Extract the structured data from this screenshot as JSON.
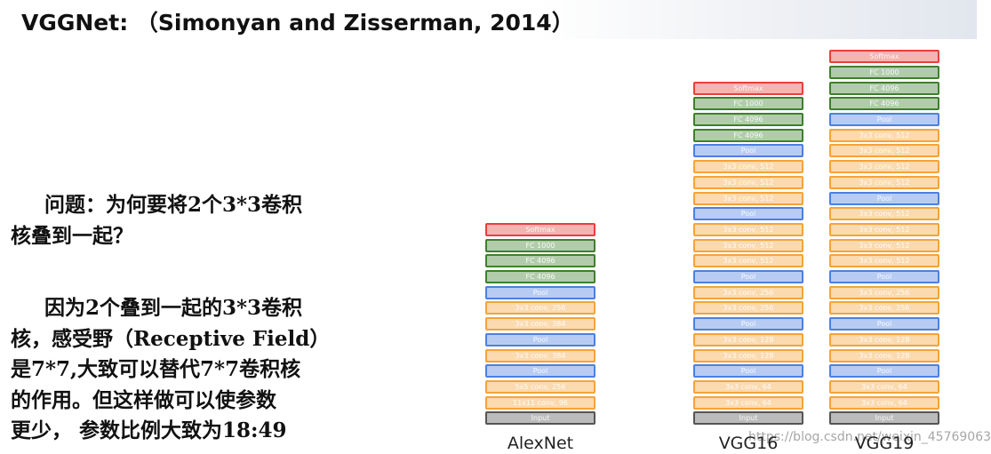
{
  "header": {
    "title": "VGGNet: （Simonyan and Zisserman, 2014）"
  },
  "text": {
    "paragraphs": [
      {
        "lines": [
          "问题：为何要将2个3*3卷积",
          "核叠到一起？"
        ]
      },
      {
        "lines": [
          "因为2个叠到一起的3*3卷积",
          "核，感受野（Receptive Field）",
          "是7*7,大致可以替代7*7卷积核",
          "的作用。但这样做可以使参数",
          "更少， 参数比例大致为18:49"
        ]
      }
    ]
  },
  "networks": [
    {
      "name": "AlexNet",
      "layers": [
        {
          "label": "Softmax",
          "color": "#e8403a"
        },
        {
          "label": "FC 1000",
          "color": "#3f7f2e"
        },
        {
          "label": "FC 4096",
          "color": "#3f7f2e"
        },
        {
          "label": "FC 4096",
          "color": "#3f7f2e"
        },
        {
          "label": "Pool",
          "color": "#4d7fe0"
        },
        {
          "label": "3x3 conv, 256",
          "color": "#f4a33a"
        },
        {
          "label": "3x3 conv, 384",
          "color": "#f4a33a"
        },
        {
          "label": "Pool",
          "color": "#4d7fe0"
        },
        {
          "label": "3x3 conv, 384",
          "color": "#f4a33a"
        },
        {
          "label": "Pool",
          "color": "#4d7fe0"
        },
        {
          "label": "5x5 conv, 256",
          "color": "#f4a33a"
        },
        {
          "label": "11x11 conv, 96",
          "color": "#f4a33a"
        },
        {
          "label": "Input",
          "color": "#555555"
        }
      ]
    },
    {
      "name": "VGG16",
      "layers": [
        {
          "label": "Softmax",
          "color": "#e8403a"
        },
        {
          "label": "FC 1000",
          "color": "#3f7f2e"
        },
        {
          "label": "FC 4096",
          "color": "#3f7f2e"
        },
        {
          "label": "FC 4096",
          "color": "#3f7f2e"
        },
        {
          "label": "Pool",
          "color": "#4d7fe0"
        },
        {
          "label": "3x3 conv, 512",
          "color": "#f4a33a"
        },
        {
          "label": "3x3 conv, 512",
          "color": "#f4a33a"
        },
        {
          "label": "3x3 conv, 512",
          "color": "#f4a33a"
        },
        {
          "label": "Pool",
          "color": "#4d7fe0"
        },
        {
          "label": "3x3 conv, 512",
          "color": "#f4a33a"
        },
        {
          "label": "3x3 conv, 512",
          "color": "#f4a33a"
        },
        {
          "label": "3x3 conv, 512",
          "color": "#f4a33a"
        },
        {
          "label": "Pool",
          "color": "#4d7fe0"
        },
        {
          "label": "3x3 conv, 256",
          "color": "#f4a33a"
        },
        {
          "label": "3x3 conv, 256",
          "color": "#f4a33a"
        },
        {
          "label": "Pool",
          "color": "#4d7fe0"
        },
        {
          "label": "3x3 conv, 128",
          "color": "#f4a33a"
        },
        {
          "label": "3x3 conv, 128",
          "color": "#f4a33a"
        },
        {
          "label": "Pool",
          "color": "#4d7fe0"
        },
        {
          "label": "3x3 conv, 64",
          "color": "#f4a33a"
        },
        {
          "label": "3x3 conv, 64",
          "color": "#f4a33a"
        },
        {
          "label": "Input",
          "color": "#555555"
        }
      ]
    },
    {
      "name": "VGG19",
      "layers": [
        {
          "label": "Softmax",
          "color": "#e8403a"
        },
        {
          "label": "FC 1000",
          "color": "#3f7f2e"
        },
        {
          "label": "FC 4096",
          "color": "#3f7f2e"
        },
        {
          "label": "FC 4096",
          "color": "#3f7f2e"
        },
        {
          "label": "Pool",
          "color": "#4d7fe0"
        },
        {
          "label": "3x3 conv, 512",
          "color": "#f4a33a"
        },
        {
          "label": "3x3 conv, 512",
          "color": "#f4a33a"
        },
        {
          "label": "3x3 conv, 512",
          "color": "#f4a33a"
        },
        {
          "label": "3x3 conv, 512",
          "color": "#f4a33a"
        },
        {
          "label": "Pool",
          "color": "#4d7fe0"
        },
        {
          "label": "3x3 conv, 512",
          "color": "#f4a33a"
        },
        {
          "label": "3x3 conv, 512",
          "color": "#f4a33a"
        },
        {
          "label": "3x3 conv, 512",
          "color": "#f4a33a"
        },
        {
          "label": "3x3 conv, 512",
          "color": "#f4a33a"
        },
        {
          "label": "Pool",
          "color": "#4d7fe0"
        },
        {
          "label": "3x3 conv, 256",
          "color": "#f4a33a"
        },
        {
          "label": "3x3 conv, 256",
          "color": "#f4a33a"
        },
        {
          "label": "Pool",
          "color": "#4d7fe0"
        },
        {
          "label": "3x3 conv, 128",
          "color": "#f4a33a"
        },
        {
          "label": "3x3 conv, 128",
          "color": "#f4a33a"
        },
        {
          "label": "Pool",
          "color": "#4d7fe0"
        },
        {
          "label": "3x3 conv, 64",
          "color": "#f4a33a"
        },
        {
          "label": "3x3 conv, 64",
          "color": "#f4a33a"
        },
        {
          "label": "Input",
          "color": "#555555"
        }
      ]
    }
  ],
  "watermark": "https://blog.csdn.net/weixin_45769063"
}
